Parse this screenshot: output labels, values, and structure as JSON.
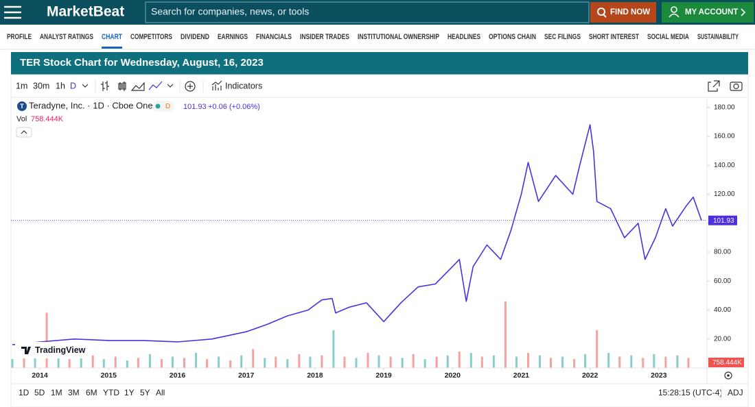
{
  "header": {
    "logo": "MarketBeat",
    "search_placeholder": "Search for companies, news, or tools",
    "find_button": "FIND NOW",
    "account_button": "MY ACCOUNT"
  },
  "nav": [
    "PROFILE",
    "ANALYST RATINGS",
    "CHART",
    "COMPETITORS",
    "DIVIDEND",
    "EARNINGS",
    "FINANCIALS",
    "INSIDER TRADES",
    "INSTITUTIONAL OWNERSHIP",
    "HEADLINES",
    "OPTIONS CHAIN",
    "SEC FILINGS",
    "SHORT INTEREST",
    "SOCIAL MEDIA",
    "SUSTAINABILITY"
  ],
  "nav_active": 2,
  "panel_title": "TER Stock Chart for Wednesday, August, 16, 2023",
  "toolbar": {
    "intervals": [
      "1m",
      "30m",
      "1h",
      "D"
    ],
    "active_interval": 3,
    "indicators": "Indicators"
  },
  "legend": {
    "symbol": "T",
    "name": "Teradyne, Inc. · 1D · Cboe One",
    "badge": "D",
    "price": "101.93",
    "change": "+0.06 (+0.06%)",
    "vol_label": "Vol",
    "vol_value": "758.444K"
  },
  "chart_data": {
    "type": "line",
    "color": "#4f2de0",
    "x": [
      2013.6,
      2014.0,
      2014.5,
      2015.0,
      2015.5,
      2016.0,
      2016.5,
      2017.0,
      2017.3,
      2017.6,
      2017.9,
      2018.1,
      2018.25,
      2018.3,
      2018.5,
      2018.75,
      2019.0,
      2019.25,
      2019.5,
      2019.75,
      2020.0,
      2020.1,
      2020.2,
      2020.3,
      2020.5,
      2020.7,
      2020.85,
      2021.0,
      2021.1,
      2021.25,
      2021.5,
      2021.75,
      2021.85,
      2022.0,
      2022.05,
      2022.1,
      2022.3,
      2022.5,
      2022.7,
      2022.8,
      2022.95,
      2023.1,
      2023.2,
      2023.4,
      2023.5,
      2023.62
    ],
    "values": [
      16,
      18,
      20,
      19,
      19,
      18,
      20,
      25,
      30,
      36,
      40,
      47,
      48,
      38,
      42,
      45,
      32,
      45,
      56,
      58,
      70,
      75,
      46,
      70,
      85,
      75,
      95,
      120,
      142,
      115,
      133,
      120,
      140,
      168,
      150,
      115,
      110,
      90,
      100,
      75,
      90,
      110,
      98,
      112,
      118,
      101.93
    ],
    "xlim": [
      2013.58,
      2023.7
    ],
    "xticks": [
      2014,
      2015,
      2016,
      2017,
      2018,
      2019,
      2020,
      2021,
      2022,
      2023
    ],
    "ylim": [
      0,
      187
    ],
    "yticks": [
      {
        "value": 20,
        "label": "20.00"
      },
      {
        "value": 40,
        "label": "40.00"
      },
      {
        "value": 60,
        "label": "60.00"
      },
      {
        "value": 80,
        "label": "80.00"
      },
      {
        "value": 100,
        "label": "100.00"
      },
      {
        "value": 120,
        "label": "120.00"
      },
      {
        "value": 140,
        "label": "140.00"
      },
      {
        "value": 160,
        "label": "160.00"
      },
      {
        "value": 180,
        "label": "180.00"
      }
    ]
  },
  "volume": {
    "up_color": "#26a69a",
    "down_color": "#ef5350",
    "ylim": [
      0,
      6000
    ],
    "x": [
      2013.6,
      2013.77,
      2013.93,
      2014.1,
      2014.27,
      2014.43,
      2014.6,
      2014.77,
      2014.93,
      2015.1,
      2015.27,
      2015.43,
      2015.6,
      2015.77,
      2015.93,
      2016.1,
      2016.27,
      2016.43,
      2016.6,
      2016.77,
      2016.93,
      2017.1,
      2017.27,
      2017.43,
      2017.6,
      2017.77,
      2017.93,
      2018.1,
      2018.27,
      2018.43,
      2018.6,
      2018.77,
      2018.93,
      2019.1,
      2019.27,
      2019.43,
      2019.6,
      2019.77,
      2019.93,
      2020.1,
      2020.27,
      2020.43,
      2020.6,
      2020.77,
      2020.93,
      2021.1,
      2021.27,
      2021.43,
      2021.6,
      2021.77,
      2021.93,
      2022.1,
      2022.27,
      2022.43,
      2022.6,
      2022.77,
      2022.93,
      2023.1,
      2023.27,
      2023.43
    ],
    "values": [
      700,
      900,
      800,
      4400,
      900,
      700,
      800,
      1000,
      700,
      900,
      600,
      800,
      1100,
      700,
      900,
      800,
      1200,
      700,
      900,
      600,
      1000,
      1500,
      800,
      900,
      700,
      1100,
      900,
      1000,
      3000,
      900,
      800,
      1200,
      1000,
      900,
      800,
      1100,
      700,
      900,
      1000,
      1300,
      1200,
      900,
      1000,
      5300,
      900,
      1200,
      1000,
      800,
      900,
      700,
      1100,
      3000,
      1200,
      900,
      1000,
      800,
      1100,
      900,
      1000,
      800
    ]
  },
  "watermark": "TradingView",
  "ranges": [
    "1D",
    "5D",
    "1M",
    "3M",
    "6M",
    "YTD",
    "1Y",
    "5Y",
    "All"
  ],
  "time": "15:28:15 (UTC-4)",
  "adj": "ADJ"
}
